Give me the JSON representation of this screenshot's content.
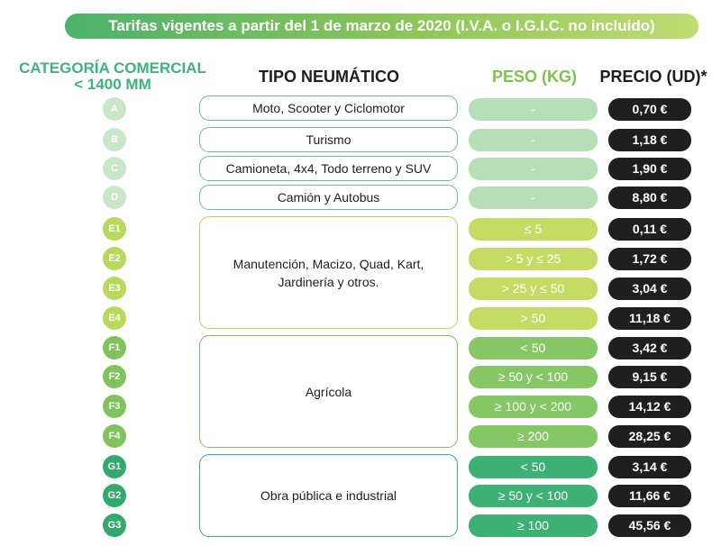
{
  "banner": "Tarifas vigentes a partir del 1 de marzo de 2020 (I.V.A. o I.G.I.C. no incluido)",
  "headers": {
    "categoria": "CATEGORÍA COMERCIAL\n< 1400 mm",
    "tipo": "TIPO NEUMÁTICO",
    "peso": "PESO (KG)",
    "precio": "PRECIO (UD)*"
  },
  "colors": {
    "group_a_d": "#b7deb7",
    "group_e": "#c4dc63",
    "group_f": "#86c765",
    "group_g": "#3db073",
    "price_bg": "#1f1f1f"
  },
  "tipos": [
    {
      "label": "Moto, Scooter y Ciclomotor"
    },
    {
      "label": "Turismo"
    },
    {
      "label": "Camioneta, 4x4, Todo terreno y SUV"
    },
    {
      "label": "Camión y Autobus"
    },
    {
      "label": "Manutención, Macizo, Quad, Kart,\nJardinería y otros."
    },
    {
      "label": "Agrícola"
    },
    {
      "label": "Obra pública e industrial"
    }
  ],
  "rows": [
    {
      "category": "A",
      "peso": "-",
      "precio": "0,70 €"
    },
    {
      "category": "B",
      "peso": "-",
      "precio": "1,18 €"
    },
    {
      "category": "C",
      "peso": "-",
      "precio": "1,90 €"
    },
    {
      "category": "D",
      "peso": "-",
      "precio": "8,80 €"
    },
    {
      "category": "E1",
      "peso": "≤ 5",
      "precio": "0,11 €"
    },
    {
      "category": "E2",
      "peso": "> 5 y  ≤ 25",
      "precio": "1,72 €"
    },
    {
      "category": "E3",
      "peso": "> 25 y ≤ 50",
      "precio": "3,04 €"
    },
    {
      "category": "E4",
      "peso": "> 50",
      "precio": "11,18 €"
    },
    {
      "category": "F1",
      "peso": "< 50",
      "precio": "3,42 €"
    },
    {
      "category": "F2",
      "peso": "≥ 50 y < 100",
      "precio": "9,15 €"
    },
    {
      "category": "F3",
      "peso": "≥ 100 y < 200",
      "precio": "14,12 €"
    },
    {
      "category": "F4",
      "peso": "≥ 200",
      "precio": "28,25 €"
    },
    {
      "category": "G1",
      "peso": "< 50",
      "precio": "3,14 €"
    },
    {
      "category": "G2",
      "peso": "≥ 50 y < 100",
      "precio": "11,66 €"
    },
    {
      "category": "G3",
      "peso": "≥ 100",
      "precio": "45,56 €"
    }
  ]
}
